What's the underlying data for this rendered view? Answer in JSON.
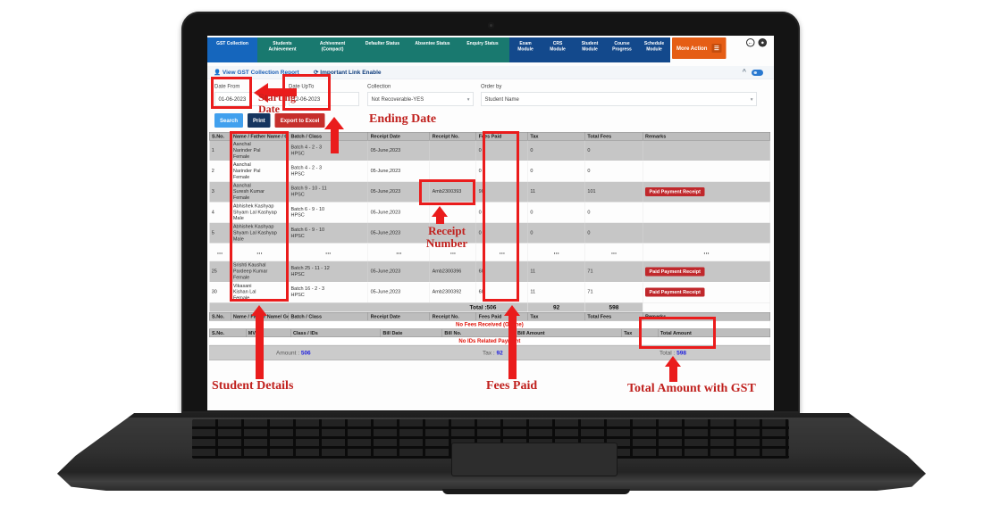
{
  "nav": {
    "tabs": [
      {
        "label": "GST Collection",
        "active": true
      },
      {
        "label": "Students Achievement",
        "active": false
      },
      {
        "label": "Achivement (Compact)",
        "active": false
      },
      {
        "label": "Defaulter Status",
        "active": false
      },
      {
        "label": "Absentee Status",
        "active": false
      },
      {
        "label": "Enquiry Status",
        "active": false
      }
    ],
    "modules": [
      "Exam Module",
      "CRS Module",
      "Student Module",
      "Course Progress",
      "Schedule Module"
    ],
    "more_action": "More Action",
    "more_action_icon": "menu-icon",
    "corner_icons": [
      "back-icon",
      "power-icon"
    ]
  },
  "toolbar": {
    "report_link": "View GST Collection Report",
    "important_link": "Important Link Enable",
    "collapse_icon": "^"
  },
  "filters": {
    "date_from": {
      "label": "Date From",
      "value": "01-06-2023"
    },
    "date_upto": {
      "label": "Date UpTo",
      "value": "12-06-2023"
    },
    "collection": {
      "label": "Collection",
      "value": "Not Recoverable-YES"
    },
    "order_by": {
      "label": "Order by",
      "value": "Student Name"
    },
    "buttons": {
      "search": "Search",
      "print": "Print",
      "export": "Export to Excel"
    }
  },
  "table": {
    "headers": [
      "S.No.",
      "Name / Father Name / Gender",
      "Batch / Class",
      "Receipt Date",
      "Receipt No.",
      "Fees Paid",
      "Tax",
      "Total Fees",
      "Remarks"
    ],
    "paid_button": "Paid Payment Receipt",
    "rows": [
      {
        "no": "1",
        "name": [
          "Aanchal",
          "Narinder Pal",
          "Female"
        ],
        "batch": [
          "Batch 4 - 2 - 3",
          "HPSC"
        ],
        "date": "05-June,2023",
        "receipt": "",
        "fees": "0",
        "tax": "0",
        "total": "0",
        "paid": false,
        "shaded": true
      },
      {
        "no": "2",
        "name": [
          "Aanchal",
          "Narinder Pal",
          "Female"
        ],
        "batch": [
          "Batch 4 - 2 - 3",
          "HPSC"
        ],
        "date": "05-June,2023",
        "receipt": "",
        "fees": "0",
        "tax": "0",
        "total": "0",
        "paid": false,
        "shaded": false
      },
      {
        "no": "3",
        "name": [
          "Aanchal",
          "Suresh Kumar",
          "Female"
        ],
        "batch": [
          "Batch 9 - 10 - 11",
          "HPSC"
        ],
        "date": "05-June,2023",
        "receipt": "Amb2300393",
        "fees": "90",
        "tax": "11",
        "total": "101",
        "paid": true,
        "shaded": true
      },
      {
        "no": "4",
        "name": [
          "Abhishek Kashyap",
          "Shyam Lal Kashyap",
          "Male"
        ],
        "batch": [
          "Batch 6 - 9 - 10",
          "HPSC"
        ],
        "date": "05-June,2023",
        "receipt": "",
        "fees": "0",
        "tax": "0",
        "total": "0",
        "paid": false,
        "shaded": false
      },
      {
        "no": "5",
        "name": [
          "Abhishek Kashyap",
          "Shyam Lal Kashyap",
          "Male"
        ],
        "batch": [
          "Batch 6 - 9 - 10",
          "HPSC"
        ],
        "date": "05-June,2023",
        "receipt": "",
        "fees": "0",
        "tax": "0",
        "total": "0",
        "paid": false,
        "shaded": true
      },
      {
        "ellipsis": true
      },
      {
        "no": "25",
        "name": [
          "Srishti Kaushal",
          "Pardeep Kumar",
          "Female"
        ],
        "batch": [
          "Batch 25 - 11 - 12",
          "HPSC"
        ],
        "date": "05-June,2023",
        "receipt": "Amb2300396",
        "fees": "60",
        "tax": "11",
        "total": "71",
        "paid": true,
        "shaded": true
      },
      {
        "no": "30",
        "name": [
          "Vikasani",
          "Kishan Lal",
          "Female"
        ],
        "batch": [
          "Batch 16 - 2 - 3",
          "HPSC"
        ],
        "date": "05-June,2023",
        "receipt": "Amb2300392",
        "fees": "60",
        "tax": "11",
        "total": "71",
        "paid": true,
        "shaded": false
      }
    ],
    "total_row": {
      "label": "Total :506",
      "tax": "92",
      "total": "598"
    }
  },
  "empty_section_1": {
    "headers": [
      "S.No.",
      "Name / Father Name/ Gender",
      "Batch / Class",
      "Receipt Date",
      "Receipt No.",
      "Fees Paid",
      "Tax",
      "Total Fees",
      "Remarks"
    ],
    "message": "No Fees Received (Online)"
  },
  "empty_section_2": {
    "headers": [
      "S.No.",
      "MVP",
      "Class / IDs",
      "Bill Date",
      "Bill No.",
      "Bill Amount",
      "Tax",
      "Total Amount"
    ],
    "message": "No IDs Related Payment"
  },
  "footer": {
    "amount_label": "Amount :",
    "amount": "506",
    "tax_label": "Tax :",
    "tax": "92",
    "total_label": "Total :",
    "total": "598"
  },
  "annotations": {
    "starting_date": "Starting Date",
    "ending_date": "Ending Date",
    "receipt_number": "Receipt Number",
    "student_details": "Student Details",
    "fees_paid": "Fees Paid",
    "total_amount": "Total Amount with GST"
  },
  "colors": {
    "teal": "#19796f",
    "navy": "#13498c",
    "active_tab": "#1566bd",
    "orange": "#e55d15",
    "annotation_red": "#ea1c1c",
    "button_red": "#c0282c",
    "value_blue": "#2222dd"
  }
}
